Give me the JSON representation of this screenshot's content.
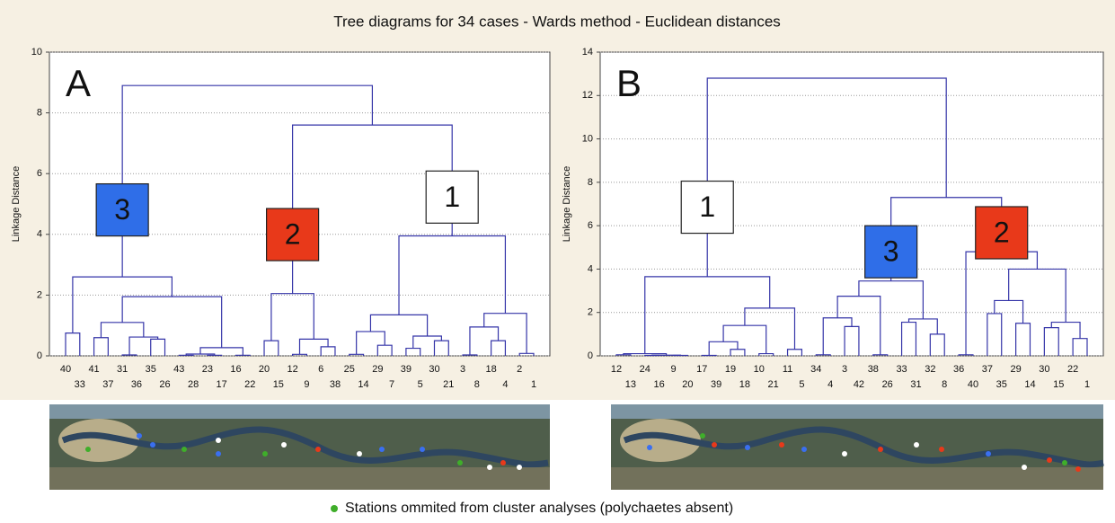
{
  "title": "Tree diagrams for 34 cases - Wards method - Euclidean distances",
  "note": "Stations ommited from cluster analyses (polychaetes absent)",
  "chart_data": [
    {
      "type": "dendrogram",
      "panel_label": "A",
      "ylabel": "Linkage Distance",
      "ylim": [
        0,
        10
      ],
      "yticks": [
        0,
        2,
        4,
        6,
        8,
        10
      ],
      "grid": true,
      "color": "#3535a8",
      "tree": {
        "height": 8.9,
        "children": [
          {
            "height": 2.6,
            "label": "3",
            "color": "#2f6ee8",
            "children": [
              {
                "height": 0.75,
                "children": [
                  "40",
                  "33"
                ]
              },
              {
                "height": 1.95,
                "children": [
                  {
                    "height": 1.1,
                    "children": [
                      {
                        "height": 0.6,
                        "children": [
                          "41",
                          "37"
                        ]
                      },
                      {
                        "height": 0.62,
                        "children": [
                          {
                            "height": 0.03,
                            "children": [
                              "31",
                              "36"
                            ]
                          },
                          {
                            "height": 0.55,
                            "children": [
                              "35",
                              "26"
                            ]
                          }
                        ]
                      }
                    ]
                  },
                  {
                    "height": 0.27,
                    "children": [
                      {
                        "height": 0.06,
                        "children": [
                          {
                            "height": 0.02,
                            "children": [
                              "43",
                              "28"
                            ]
                          },
                          {
                            "height": 0.02,
                            "children": [
                              "23",
                              "17"
                            ]
                          }
                        ]
                      },
                      {
                        "height": 0.02,
                        "children": [
                          "16",
                          "22"
                        ]
                      }
                    ]
                  }
                ]
              }
            ]
          },
          {
            "height": 7.6,
            "children": [
              {
                "height": 2.05,
                "label": "2",
                "color": "#e8391a",
                "children": [
                  {
                    "height": 0.5,
                    "children": [
                      "20",
                      "15"
                    ]
                  },
                  {
                    "height": 0.55,
                    "children": [
                      {
                        "height": 0.05,
                        "children": [
                          "12",
                          "9"
                        ]
                      },
                      {
                        "height": 0.3,
                        "children": [
                          "6",
                          "38"
                        ]
                      }
                    ]
                  }
                ]
              },
              {
                "height": 3.95,
                "label": "1",
                "color": "#ffffff",
                "children": [
                  {
                    "height": 1.35,
                    "children": [
                      {
                        "height": 0.8,
                        "children": [
                          {
                            "height": 0.05,
                            "children": [
                              "25",
                              "14"
                            ]
                          },
                          {
                            "height": 0.35,
                            "children": [
                              "29",
                              "7"
                            ]
                          }
                        ]
                      },
                      {
                        "height": 0.65,
                        "children": [
                          {
                            "height": 0.25,
                            "children": [
                              "39",
                              "5"
                            ]
                          },
                          {
                            "height": 0.5,
                            "children": [
                              "30",
                              "21"
                            ]
                          }
                        ]
                      }
                    ]
                  },
                  {
                    "height": 1.4,
                    "children": [
                      {
                        "height": 0.95,
                        "children": [
                          {
                            "height": 0.03,
                            "children": [
                              "3",
                              "8"
                            ]
                          },
                          {
                            "height": 0.5,
                            "children": [
                              "18",
                              "4"
                            ]
                          }
                        ]
                      },
                      {
                        "height": 0.08,
                        "children": [
                          "2",
                          "1"
                        ]
                      }
                    ]
                  }
                ]
              }
            ]
          }
        ]
      }
    },
    {
      "type": "dendrogram",
      "panel_label": "B",
      "ylabel": "Linkage Distance",
      "ylim": [
        0,
        14
      ],
      "yticks": [
        0,
        2,
        4,
        6,
        8,
        10,
        12,
        14
      ],
      "grid": true,
      "color": "#3535a8",
      "tree": {
        "height": 12.8,
        "children": [
          {
            "height": 3.65,
            "label": "1",
            "color": "#ffffff",
            "children": [
              {
                "height": 0.1,
                "children": [
                  {
                    "height": 0.05,
                    "children": [
                      "12",
                      "13"
                    ]
                  },
                  {
                    "height": 0.03,
                    "children": [
                      {
                        "height": 0.02,
                        "children": [
                          "24",
                          "16"
                        ]
                      },
                      {
                        "height": 0.02,
                        "children": [
                          "9",
                          "20"
                        ]
                      }
                    ]
                  }
                ]
              },
              {
                "height": 2.2,
                "children": [
                  {
                    "height": 1.4,
                    "children": [
                      {
                        "height": 0.65,
                        "children": [
                          {
                            "height": 0.02,
                            "children": [
                              "17",
                              "39"
                            ]
                          },
                          {
                            "height": 0.3,
                            "children": [
                              "19",
                              "18"
                            ]
                          }
                        ]
                      },
                      {
                        "height": 0.1,
                        "children": [
                          "10",
                          "21"
                        ]
                      }
                    ]
                  },
                  {
                    "height": 0.3,
                    "children": [
                      "11",
                      "5"
                    ]
                  }
                ]
              }
            ]
          },
          {
            "height": 7.3,
            "children": [
              {
                "height": 3.45,
                "label": "3",
                "color": "#2f6ee8",
                "children": [
                  {
                    "height": 2.75,
                    "children": [
                      {
                        "height": 1.75,
                        "children": [
                          {
                            "height": 0.05,
                            "children": [
                              "34",
                              "4"
                            ]
                          },
                          {
                            "height": 1.35,
                            "children": [
                              "3",
                              "42"
                            ]
                          }
                        ]
                      },
                      {
                        "height": 0.05,
                        "children": [
                          "38",
                          "26"
                        ]
                      }
                    ]
                  },
                  {
                    "height": 1.7,
                    "children": [
                      {
                        "height": 1.55,
                        "children": [
                          "33",
                          "31"
                        ]
                      },
                      {
                        "height": 1.0,
                        "children": [
                          "32",
                          "8"
                        ]
                      }
                    ]
                  }
                ]
              },
              {
                "height": 4.8,
                "label": "2",
                "color": "#e8391a",
                "children": [
                  {
                    "height": 0.05,
                    "children": [
                      "36",
                      "40"
                    ]
                  },
                  {
                    "height": 4.0,
                    "children": [
                      {
                        "height": 2.55,
                        "children": [
                          {
                            "height": 1.95,
                            "children": [
                              "37",
                              "35"
                            ]
                          },
                          {
                            "height": 1.5,
                            "children": [
                              "29",
                              "14"
                            ]
                          }
                        ]
                      },
                      {
                        "height": 1.55,
                        "children": [
                          {
                            "height": 1.3,
                            "children": [
                              "30",
                              "15"
                            ]
                          },
                          {
                            "height": 0.8,
                            "children": [
                              "22",
                              "1"
                            ]
                          }
                        ]
                      }
                    ]
                  }
                ]
              }
            ]
          }
        ]
      }
    }
  ]
}
